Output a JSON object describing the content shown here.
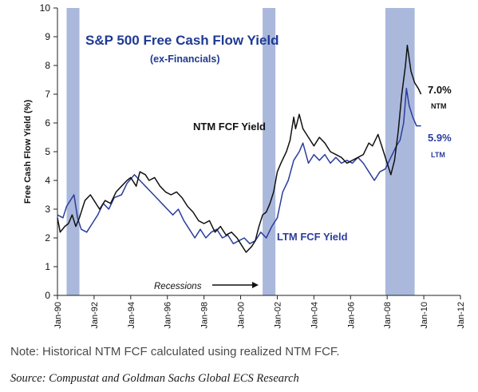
{
  "chart_data": {
    "type": "line",
    "title": "S&P 500 Free Cash Flow Yield",
    "subtitle": "(ex-Financials)",
    "ylabel": "Free Cash Flow Yield (%)",
    "xlabel": "",
    "ylim": [
      0,
      10
    ],
    "xlim": [
      1990.0,
      2012.0
    ],
    "y_ticks": [
      "0",
      "1",
      "2",
      "3",
      "4",
      "5",
      "6",
      "7",
      "8",
      "9",
      "10"
    ],
    "x_ticks": [
      {
        "label": "Jan-90",
        "x": 1990.0
      },
      {
        "label": "Jan-92",
        "x": 1992.0
      },
      {
        "label": "Jan-94",
        "x": 1994.0
      },
      {
        "label": "Jan-96",
        "x": 1996.0
      },
      {
        "label": "Jan-98",
        "x": 1998.0
      },
      {
        "label": "Jan-00",
        "x": 2000.0
      },
      {
        "label": "Jan-02",
        "x": 2002.0
      },
      {
        "label": "Jan-04",
        "x": 2004.0
      },
      {
        "label": "Jan-06",
        "x": 2006.0
      },
      {
        "label": "Jan-08",
        "x": 2008.0
      },
      {
        "label": "Jan-10",
        "x": 2010.0
      },
      {
        "label": "Jan-12",
        "x": 2012.0
      }
    ],
    "grid": false,
    "recessions": [
      {
        "start": 1990.5,
        "end": 1991.2
      },
      {
        "start": 2001.2,
        "end": 2001.9
      },
      {
        "start": 2007.9,
        "end": 2009.5
      }
    ],
    "series": [
      {
        "name": "NTM FCF Yield",
        "color": "#111111",
        "points": [
          [
            1990.0,
            2.7
          ],
          [
            1990.15,
            2.2
          ],
          [
            1990.4,
            2.4
          ],
          [
            1990.6,
            2.5
          ],
          [
            1990.8,
            2.8
          ],
          [
            1991.0,
            2.4
          ],
          [
            1991.2,
            2.7
          ],
          [
            1991.5,
            3.3
          ],
          [
            1991.8,
            3.5
          ],
          [
            1992.0,
            3.3
          ],
          [
            1992.3,
            3.0
          ],
          [
            1992.6,
            3.3
          ],
          [
            1992.9,
            3.2
          ],
          [
            1993.2,
            3.6
          ],
          [
            1993.5,
            3.8
          ],
          [
            1993.8,
            4.0
          ],
          [
            1994.0,
            4.1
          ],
          [
            1994.3,
            3.8
          ],
          [
            1994.5,
            4.3
          ],
          [
            1994.8,
            4.2
          ],
          [
            1995.0,
            4.0
          ],
          [
            1995.3,
            4.1
          ],
          [
            1995.6,
            3.8
          ],
          [
            1995.9,
            3.6
          ],
          [
            1996.2,
            3.5
          ],
          [
            1996.5,
            3.6
          ],
          [
            1996.8,
            3.4
          ],
          [
            1997.1,
            3.1
          ],
          [
            1997.4,
            2.9
          ],
          [
            1997.7,
            2.6
          ],
          [
            1998.0,
            2.5
          ],
          [
            1998.3,
            2.6
          ],
          [
            1998.6,
            2.2
          ],
          [
            1998.9,
            2.4
          ],
          [
            1999.2,
            2.1
          ],
          [
            1999.5,
            2.2
          ],
          [
            1999.8,
            2.0
          ],
          [
            2000.0,
            1.8
          ],
          [
            2000.3,
            1.5
          ],
          [
            2000.6,
            1.7
          ],
          [
            2000.8,
            1.9
          ],
          [
            2001.0,
            2.4
          ],
          [
            2001.2,
            2.8
          ],
          [
            2001.4,
            2.9
          ],
          [
            2001.6,
            3.2
          ],
          [
            2001.8,
            3.6
          ],
          [
            2002.0,
            4.3
          ],
          [
            2002.2,
            4.6
          ],
          [
            2002.5,
            5.0
          ],
          [
            2002.7,
            5.4
          ],
          [
            2002.9,
            6.2
          ],
          [
            2003.0,
            5.8
          ],
          [
            2003.2,
            6.3
          ],
          [
            2003.4,
            5.8
          ],
          [
            2003.7,
            5.5
          ],
          [
            2004.0,
            5.2
          ],
          [
            2004.3,
            5.5
          ],
          [
            2004.6,
            5.3
          ],
          [
            2004.9,
            5.0
          ],
          [
            2005.2,
            4.9
          ],
          [
            2005.5,
            4.8
          ],
          [
            2005.8,
            4.6
          ],
          [
            2006.1,
            4.7
          ],
          [
            2006.4,
            4.8
          ],
          [
            2006.7,
            4.9
          ],
          [
            2007.0,
            5.3
          ],
          [
            2007.2,
            5.2
          ],
          [
            2007.5,
            5.6
          ],
          [
            2007.8,
            5.0
          ],
          [
            2008.0,
            4.6
          ],
          [
            2008.2,
            4.2
          ],
          [
            2008.4,
            4.7
          ],
          [
            2008.6,
            5.7
          ],
          [
            2008.8,
            7.0
          ],
          [
            2009.0,
            8.0
          ],
          [
            2009.1,
            8.7
          ],
          [
            2009.3,
            7.8
          ],
          [
            2009.5,
            7.4
          ],
          [
            2009.7,
            7.2
          ],
          [
            2009.85,
            7.0
          ]
        ],
        "end_value_label": "7.0%",
        "end_sub_label": "NTM"
      },
      {
        "name": "LTM FCF Yield",
        "color": "#2b3d9c",
        "points": [
          [
            1990.0,
            2.8
          ],
          [
            1990.3,
            2.7
          ],
          [
            1990.5,
            3.1
          ],
          [
            1990.7,
            3.3
          ],
          [
            1990.9,
            3.5
          ],
          [
            1991.1,
            2.7
          ],
          [
            1991.3,
            2.3
          ],
          [
            1991.6,
            2.2
          ],
          [
            1991.9,
            2.5
          ],
          [
            1992.2,
            2.8
          ],
          [
            1992.5,
            3.2
          ],
          [
            1992.8,
            3.0
          ],
          [
            1993.1,
            3.4
          ],
          [
            1993.5,
            3.5
          ],
          [
            1993.8,
            3.9
          ],
          [
            1994.2,
            4.2
          ],
          [
            1994.5,
            4.0
          ],
          [
            1994.8,
            3.8
          ],
          [
            1995.1,
            3.6
          ],
          [
            1995.4,
            3.4
          ],
          [
            1995.7,
            3.2
          ],
          [
            1996.0,
            3.0
          ],
          [
            1996.3,
            2.8
          ],
          [
            1996.6,
            3.0
          ],
          [
            1996.9,
            2.6
          ],
          [
            1997.2,
            2.3
          ],
          [
            1997.5,
            2.0
          ],
          [
            1997.8,
            2.3
          ],
          [
            1998.1,
            2.0
          ],
          [
            1998.4,
            2.2
          ],
          [
            1998.7,
            2.3
          ],
          [
            1999.0,
            2.0
          ],
          [
            1999.3,
            2.1
          ],
          [
            1999.6,
            1.8
          ],
          [
            1999.9,
            1.9
          ],
          [
            2000.2,
            2.0
          ],
          [
            2000.5,
            1.8
          ],
          [
            2000.8,
            1.9
          ],
          [
            2001.1,
            2.2
          ],
          [
            2001.4,
            2.0
          ],
          [
            2001.7,
            2.4
          ],
          [
            2002.0,
            2.7
          ],
          [
            2002.3,
            3.6
          ],
          [
            2002.6,
            4.0
          ],
          [
            2002.9,
            4.7
          ],
          [
            2003.2,
            5.0
          ],
          [
            2003.4,
            5.3
          ],
          [
            2003.7,
            4.6
          ],
          [
            2004.0,
            4.9
          ],
          [
            2004.3,
            4.7
          ],
          [
            2004.6,
            4.9
          ],
          [
            2004.9,
            4.6
          ],
          [
            2005.2,
            4.8
          ],
          [
            2005.5,
            4.6
          ],
          [
            2005.8,
            4.7
          ],
          [
            2006.1,
            4.6
          ],
          [
            2006.4,
            4.8
          ],
          [
            2006.7,
            4.6
          ],
          [
            2007.0,
            4.3
          ],
          [
            2007.3,
            4.0
          ],
          [
            2007.6,
            4.3
          ],
          [
            2007.9,
            4.4
          ],
          [
            2008.2,
            4.8
          ],
          [
            2008.5,
            5.2
          ],
          [
            2008.7,
            5.4
          ],
          [
            2008.9,
            6.0
          ],
          [
            2009.05,
            7.2
          ],
          [
            2009.2,
            6.6
          ],
          [
            2009.4,
            6.2
          ],
          [
            2009.6,
            5.9
          ],
          [
            2009.85,
            5.9
          ]
        ],
        "end_value_label": "5.9%",
        "end_sub_label": "LTM"
      }
    ],
    "annotations": {
      "ntm_label": "NTM FCF Yield",
      "ltm_label": "LTM FCF Yield",
      "recessions_label": "Recessions"
    },
    "colors": {
      "recession": "#aab8dc",
      "title": "#1f3a93",
      "ltm": "#2b3d9c",
      "ntm": "#111111"
    }
  },
  "footer": {
    "note": "Note: Historical NTM FCF calculated using realized NTM FCF.",
    "source": "Source: Compustat and Goldman Sachs Global ECS Research"
  }
}
